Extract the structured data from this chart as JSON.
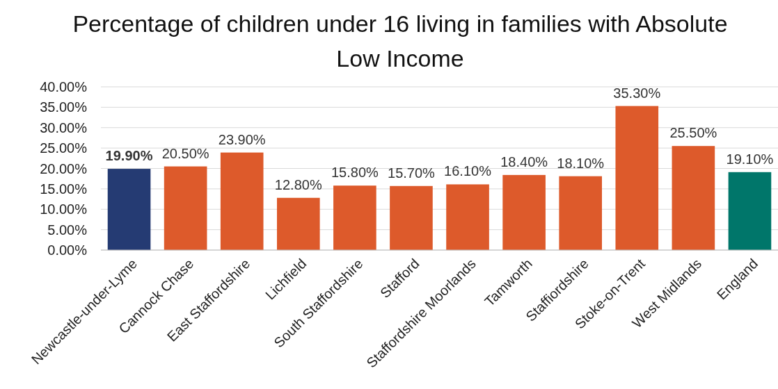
{
  "chart_data": {
    "type": "bar",
    "title": "Percentage of children under 16 living in families with Absolute Low Income",
    "categories": [
      "Newcastle-under-Lyme",
      "Cannock Chase",
      "East Staffordshire",
      "Lichfield",
      "South Staffordshire",
      "Stafford",
      "Staffordshire Moorlands",
      "Tamworth",
      "Staffiordshire",
      "Stoke-on-Trent",
      "West Midlands",
      "England"
    ],
    "values": [
      19.9,
      20.5,
      23.9,
      12.8,
      15.8,
      15.7,
      16.1,
      18.4,
      18.1,
      35.3,
      25.5,
      19.1
    ],
    "colors": [
      "#253b73",
      "#dd5a2b",
      "#dd5a2b",
      "#dd5a2b",
      "#dd5a2b",
      "#dd5a2b",
      "#dd5a2b",
      "#dd5a2b",
      "#dd5a2b",
      "#dd5a2b",
      "#dd5a2b",
      "#00766a"
    ],
    "value_labels": [
      "19.90%",
      "20.50%",
      "23.90%",
      "12.80%",
      "15.80%",
      "15.70%",
      "16.10%",
      "18.40%",
      "18.10%",
      "35.30%",
      "25.50%",
      "19.10%"
    ],
    "ylim": [
      0,
      40
    ],
    "yticks": [
      {
        "value": 0,
        "label": "0.00%"
      },
      {
        "value": 5,
        "label": "5.00%"
      },
      {
        "value": 10,
        "label": "10.00%"
      },
      {
        "value": 15,
        "label": "15.00%"
      },
      {
        "value": 20,
        "label": "20.00%"
      },
      {
        "value": 25,
        "label": "25.00%"
      },
      {
        "value": 30,
        "label": "30.00%"
      },
      {
        "value": 35,
        "label": "35.00%"
      },
      {
        "value": 40,
        "label": "40.00%"
      }
    ],
    "grid": "y"
  }
}
